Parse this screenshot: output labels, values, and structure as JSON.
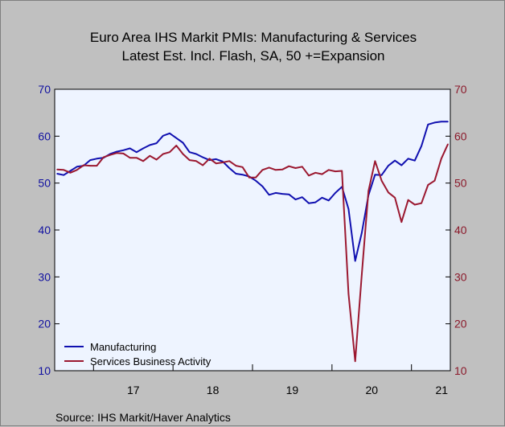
{
  "chart_data": {
    "type": "line",
    "title": "Euro Area IHS Markit PMIs: Manufacturing & Services",
    "subtitle": "Latest Est. Incl. Flash, SA, 50 +=Expansion",
    "xlabel": "",
    "ylabel": "",
    "source": "Source:  IHS Markit/Haver Analytics",
    "x_tick_labels": [
      "17",
      "18",
      "19",
      "20",
      "21"
    ],
    "y_ticks": [
      10,
      20,
      30,
      40,
      50,
      60,
      70
    ],
    "ylim": [
      10,
      70
    ],
    "grid": false,
    "legend_position": "bottom-left",
    "colors": {
      "left_axis": "#1010a0",
      "right_axis": "#8b1a2b",
      "plot_bg": "#eef4ff",
      "frame_bg": "#c0c0c0"
    },
    "x_dates": [
      "2016-07",
      "2016-08",
      "2016-09",
      "2016-10",
      "2016-11",
      "2016-12",
      "2017-01",
      "2017-02",
      "2017-03",
      "2017-04",
      "2017-05",
      "2017-06",
      "2017-07",
      "2017-08",
      "2017-09",
      "2017-10",
      "2017-11",
      "2017-12",
      "2018-01",
      "2018-02",
      "2018-03",
      "2018-04",
      "2018-05",
      "2018-06",
      "2018-07",
      "2018-08",
      "2018-09",
      "2018-10",
      "2018-11",
      "2018-12",
      "2019-01",
      "2019-02",
      "2019-03",
      "2019-04",
      "2019-05",
      "2019-06",
      "2019-07",
      "2019-08",
      "2019-09",
      "2019-10",
      "2019-11",
      "2019-12",
      "2020-01",
      "2020-02",
      "2020-03",
      "2020-04",
      "2020-05",
      "2020-06",
      "2020-07",
      "2020-08",
      "2020-09",
      "2020-10",
      "2020-11",
      "2020-12",
      "2021-01",
      "2021-02",
      "2021-03",
      "2021-04",
      "2021-05",
      "2021-06"
    ],
    "series": [
      {
        "name": "Manufacturing",
        "color": "#1010b0",
        "values": [
          52.0,
          51.7,
          52.6,
          53.5,
          53.7,
          54.9,
          55.2,
          55.4,
          56.2,
          56.7,
          57.0,
          57.4,
          56.6,
          57.4,
          58.1,
          58.5,
          60.1,
          60.6,
          59.6,
          58.6,
          56.6,
          56.2,
          55.5,
          54.9,
          55.1,
          54.6,
          53.2,
          52.0,
          51.8,
          51.4,
          50.5,
          49.3,
          47.5,
          47.9,
          47.7,
          47.6,
          46.5,
          47.0,
          45.7,
          45.9,
          46.9,
          46.3,
          47.9,
          49.2,
          44.5,
          33.4,
          39.4,
          47.4,
          51.8,
          51.7,
          53.7,
          54.8,
          53.8,
          55.2,
          54.8,
          57.9,
          62.5,
          62.9,
          63.1,
          63.1
        ]
      },
      {
        "name": "Services Business Activity",
        "color": "#9b1830",
        "values": [
          52.9,
          52.8,
          52.2,
          52.8,
          53.8,
          53.7,
          53.7,
          55.5,
          56.0,
          56.4,
          56.3,
          55.4,
          55.4,
          54.7,
          55.8,
          55.0,
          56.2,
          56.6,
          58.0,
          56.2,
          54.9,
          54.7,
          53.8,
          55.2,
          54.2,
          54.4,
          54.7,
          53.7,
          53.4,
          51.2,
          51.2,
          52.8,
          53.3,
          52.8,
          52.9,
          53.6,
          53.2,
          53.5,
          51.6,
          52.2,
          51.9,
          52.8,
          52.5,
          52.6,
          26.4,
          12.0,
          30.5,
          48.3,
          54.7,
          50.5,
          48.0,
          46.9,
          41.7,
          46.4,
          45.4,
          45.7,
          49.6,
          50.5,
          55.2,
          58.3
        ]
      }
    ]
  }
}
